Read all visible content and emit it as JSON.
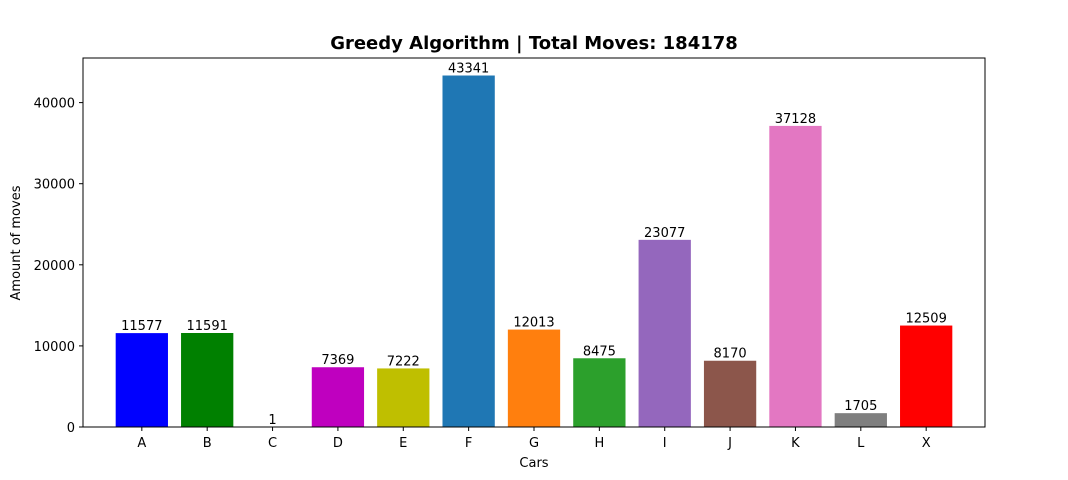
{
  "chart_data": {
    "type": "bar",
    "title": "Greedy Algorithm | Total Moves: 184178",
    "xlabel": "Cars",
    "ylabel": "Amount of moves",
    "ylim": [
      0,
      45500
    ],
    "yticks": [
      0,
      10000,
      20000,
      30000,
      40000
    ],
    "grid": false,
    "categories": [
      "A",
      "B",
      "C",
      "D",
      "E",
      "F",
      "G",
      "H",
      "I",
      "J",
      "K",
      "L",
      "X"
    ],
    "values": [
      11577,
      11591,
      1,
      7369,
      7222,
      43341,
      12013,
      8475,
      23077,
      8170,
      37128,
      1705,
      12509
    ],
    "colors": [
      "#0000ff",
      "#008000",
      "#000000",
      "#bf00bf",
      "#bfbf00",
      "#1f77b4",
      "#ff7f0e",
      "#2ca02c",
      "#9467bd",
      "#8c564b",
      "#e377c2",
      "#7f7f7f",
      "#ff0000"
    ]
  }
}
